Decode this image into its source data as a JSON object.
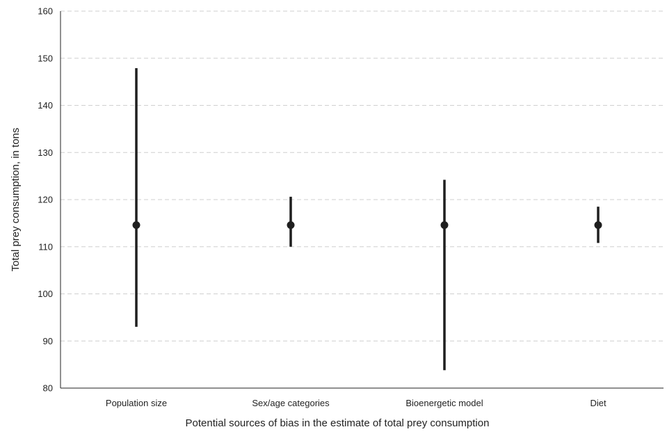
{
  "chart_data": {
    "type": "errorbar",
    "xlabel": "Potential sources of bias in the estimate of total prey consumption",
    "ylabel": "Total prey consumption, in tons",
    "ylim": [
      80,
      160
    ],
    "yticks": [
      80,
      90,
      100,
      110,
      120,
      130,
      140,
      150,
      160
    ],
    "categories": [
      "Population size",
      "Sex/age categories",
      "Bioenergetic model",
      "Diet"
    ],
    "values": [
      114.6,
      114.6,
      114.6,
      114.6
    ],
    "lower": [
      93.0,
      110.0,
      83.8,
      110.8
    ],
    "upper": [
      147.9,
      120.6,
      124.2,
      118.5
    ],
    "grid": "horizontal dashed",
    "colors": {
      "marks": "#1f1f1f",
      "grid": "#cfcfcf"
    }
  }
}
